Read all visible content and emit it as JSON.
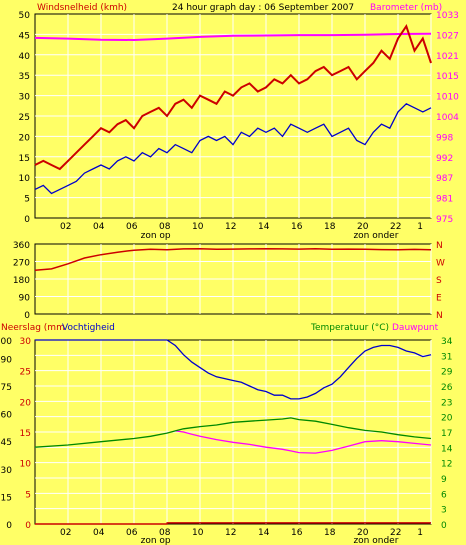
{
  "title": "24 hour graph day : 06 September 2007",
  "colors": {
    "background": "#ffff66",
    "wind": "#cc0000",
    "wind_gust": "#0000cc",
    "barometer": "#ff00ff",
    "direction": "#cc0000",
    "humidity": "#0000cc",
    "temperature": "#008800",
    "dewpoint": "#ff00ff",
    "rain": "#cc0000",
    "grid": "#ffffff",
    "text": "#000000"
  },
  "chart_data": [
    {
      "type": "line",
      "title": "24 hour graph day : 06 September 2007",
      "ylabel_left": "Windsnelheid (kmh)",
      "ylabel_right": "Barometer (mb)",
      "x_tick_labels": [
        "02",
        "04",
        "06",
        "08",
        "10",
        "12",
        "14",
        "16",
        "18",
        "20",
        "22",
        "1"
      ],
      "x_markers": [
        "zon op",
        "zon onder"
      ],
      "left_ticks": [
        "0",
        "5",
        "10",
        "15",
        "20",
        "25",
        "30",
        "35",
        "40",
        "45",
        "50"
      ],
      "right_ticks": [
        "975",
        "981",
        "987",
        "992",
        "998",
        "1004",
        "1010",
        "1015",
        "1021",
        "1027",
        "1033"
      ],
      "ylim_left": [
        0,
        50
      ],
      "ylim_right": [
        975,
        1033
      ],
      "series": [
        {
          "axis": "left",
          "x": [
            0,
            0.5,
            1,
            1.5,
            2,
            2.5,
            3,
            3.5,
            4,
            4.5,
            5,
            5.5,
            6,
            6.5,
            7,
            7.5,
            8,
            8.5,
            9,
            9.5,
            10,
            10.5,
            11,
            11.5,
            12,
            12.5,
            13,
            13.5,
            14,
            14.5,
            15,
            15.5,
            16,
            16.5,
            17,
            17.5,
            18,
            18.5,
            19,
            19.5,
            20,
            20.5,
            21,
            21.5,
            22,
            22.5,
            23,
            23.5,
            24
          ],
          "y": [
            13,
            14,
            13,
            12,
            14,
            16,
            18,
            20,
            22,
            21,
            23,
            24,
            22,
            25,
            26,
            27,
            25,
            28,
            29,
            27,
            30,
            29,
            28,
            31,
            30,
            32,
            33,
            31,
            32,
            34,
            33,
            35,
            33,
            34,
            36,
            37,
            35,
            36,
            37,
            34,
            36,
            38,
            41,
            39,
            44,
            47,
            41,
            44,
            38
          ]
        },
        {
          "axis": "left",
          "x": [
            0,
            0.5,
            1,
            1.5,
            2,
            2.5,
            3,
            3.5,
            4,
            4.5,
            5,
            5.5,
            6,
            6.5,
            7,
            7.5,
            8,
            8.5,
            9,
            9.5,
            10,
            10.5,
            11,
            11.5,
            12,
            12.5,
            13,
            13.5,
            14,
            14.5,
            15,
            15.5,
            16,
            16.5,
            17,
            17.5,
            18,
            18.5,
            19,
            19.5,
            20,
            20.5,
            21,
            21.5,
            22,
            22.5,
            23,
            23.5,
            24
          ],
          "y": [
            7,
            8,
            6,
            7,
            8,
            9,
            11,
            12,
            13,
            12,
            14,
            15,
            14,
            16,
            15,
            17,
            16,
            18,
            17,
            16,
            19,
            20,
            19,
            20,
            18,
            21,
            20,
            22,
            21,
            22,
            20,
            23,
            22,
            21,
            22,
            23,
            20,
            21,
            22,
            19,
            18,
            21,
            23,
            22,
            26,
            28,
            27,
            26,
            27
          ]
        },
        {
          "axis": "right",
          "x": [
            0,
            2,
            4,
            6,
            8,
            10,
            12,
            14,
            16,
            18,
            20,
            22,
            24
          ],
          "y": [
            1026.2,
            1026.0,
            1025.7,
            1025.6,
            1026.0,
            1026.5,
            1026.8,
            1026.9,
            1027.0,
            1027.0,
            1027.1,
            1027.3,
            1027.4
          ]
        }
      ]
    },
    {
      "type": "line",
      "ylabel_left": "",
      "ylabel_right": "",
      "left_ticks": [
        "360",
        "270",
        "180",
        "90",
        "0"
      ],
      "right_labels": [
        "N",
        "W",
        "S",
        "E",
        "N"
      ],
      "x_tick_labels": [],
      "ylim": [
        0,
        360
      ],
      "series": [
        {
          "x": [
            0,
            1,
            2,
            3,
            4,
            5,
            6,
            7,
            8,
            9,
            10,
            11,
            12,
            13,
            14,
            15,
            16,
            17,
            18,
            19,
            20,
            21,
            22,
            23,
            24
          ],
          "y": [
            225,
            232,
            258,
            288,
            305,
            318,
            328,
            333,
            330,
            335,
            336,
            333,
            334,
            335,
            336,
            335,
            334,
            336,
            333,
            334,
            333,
            331,
            330,
            332,
            330
          ]
        }
      ]
    },
    {
      "type": "line",
      "ylabel_left": "Neerslag (mm)",
      "ylabel_left2": "Vochtigheid",
      "ylabel_right": "Temperatuur (°C)",
      "ylabel_right2": "Dauwpunt",
      "left_ticks": [
        "0",
        "0",
        "15",
        "30",
        "45",
        "60",
        "75",
        "90",
        "100"
      ],
      "left_ticks_rain": [
        "0",
        "5",
        "10",
        "15",
        "20",
        "25",
        "30"
      ],
      "left_ticks_humidity": [
        "0",
        "15",
        "30",
        "45",
        "60",
        "75",
        "90",
        "100"
      ],
      "right_ticks": [
        "0",
        "3",
        "6",
        "9",
        "12",
        "14",
        "17",
        "20",
        "23",
        "26",
        "29",
        "31",
        "34"
      ],
      "x_tick_labels": [
        "02",
        "04",
        "06",
        "08",
        "10",
        "12",
        "14",
        "16",
        "18",
        "20",
        "22",
        "1"
      ],
      "x_markers": [
        "zon op",
        "zon onder"
      ],
      "ylim_humidity": [
        0,
        100
      ],
      "ylim_temp": [
        0,
        34
      ],
      "series": [
        {
          "axis": "humidity",
          "x": [
            0,
            2,
            4,
            6,
            7,
            8,
            8.5,
            9,
            9.5,
            10,
            10.5,
            11,
            11.5,
            12,
            12.5,
            13,
            13.5,
            14,
            14.5,
            15,
            15.5,
            16,
            16.5,
            17,
            17.5,
            18,
            18.5,
            19,
            19.5,
            20,
            20.5,
            21,
            21.5,
            22,
            22.5,
            23,
            23.5,
            24
          ],
          "y": [
            100,
            100,
            100,
            100,
            100,
            100,
            97,
            92,
            88,
            85,
            82,
            80,
            79,
            78,
            77,
            75,
            73,
            72,
            70,
            70,
            68,
            68,
            69,
            71,
            74,
            76,
            80,
            85,
            90,
            94,
            96,
            97,
            97,
            96,
            94,
            93,
            91,
            92
          ]
        },
        {
          "axis": "temp",
          "x": [
            0,
            2,
            4,
            6,
            7,
            8,
            8.5,
            9,
            9.5,
            10,
            11,
            12,
            13,
            14,
            15,
            15.5,
            16,
            17,
            18,
            19,
            20,
            21,
            22,
            23,
            24
          ],
          "y": [
            14.2,
            14.6,
            15.2,
            15.8,
            16.2,
            16.8,
            17.2,
            17.6,
            17.8,
            18.0,
            18.3,
            18.8,
            19.0,
            19.2,
            19.4,
            19.6,
            19.3,
            19.0,
            18.4,
            17.8,
            17.3,
            17.0,
            16.5,
            16.1,
            15.8
          ]
        },
        {
          "axis": "temp",
          "x": [
            8.5,
            9,
            9.5,
            10,
            11,
            12,
            13,
            14,
            15,
            15.5,
            16,
            17,
            18,
            19,
            20,
            21,
            22,
            23,
            24
          ],
          "y": [
            17.2,
            17.0,
            16.6,
            16.2,
            15.6,
            15.1,
            14.7,
            14.2,
            13.8,
            13.5,
            13.2,
            13.1,
            13.6,
            14.4,
            15.2,
            15.4,
            15.2,
            14.9,
            14.6
          ]
        },
        {
          "axis": "humidity",
          "x": [
            0,
            8,
            8.01,
            24
          ],
          "y": [
            0,
            0,
            0.6,
            0.6
          ]
        }
      ]
    }
  ],
  "labels": {
    "top_left": "Windsnelheid (kmh)",
    "top_right": "Barometer (mb)",
    "sunrise": "zon op",
    "sunset": "zon onder",
    "bottom_left_1": "Neerslag (mm",
    "bottom_left_2": "Vochtigheid",
    "bottom_right_1": "Temperatuur (°C)",
    "bottom_right_2": "Dauwpunt"
  }
}
